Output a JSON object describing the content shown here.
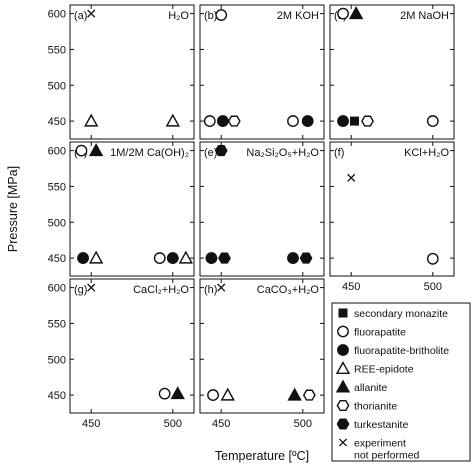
{
  "chart_data": {
    "type": "scatter",
    "xlabel": "Temperature [ºC]",
    "ylabel": "Pressure [MPa]",
    "xlim": [
      437,
      513
    ],
    "ylim": [
      425,
      612
    ],
    "xticks": [
      450,
      500
    ],
    "yticks": [
      450,
      500,
      550,
      600
    ],
    "panels": [
      {
        "id": "a",
        "tag": "(a)",
        "title": "H₂O",
        "points": [
          {
            "x": 450,
            "y": 600,
            "marker": "x"
          },
          {
            "x": 450,
            "y": 450,
            "marker": "tri-open"
          },
          {
            "x": 500,
            "y": 450,
            "marker": "tri-open"
          }
        ]
      },
      {
        "id": "b",
        "tag": "(b)",
        "title": "2M KOH",
        "points": [
          {
            "x": 450,
            "y": 598,
            "marker": "circle-open"
          },
          {
            "x": 443,
            "y": 450,
            "marker": "circle-open"
          },
          {
            "x": 451,
            "y": 450,
            "marker": "circle-filled"
          },
          {
            "x": 458,
            "y": 450,
            "marker": "hex-open"
          },
          {
            "x": 494,
            "y": 450,
            "marker": "circle-open"
          },
          {
            "x": 503,
            "y": 450,
            "marker": "circle-filled"
          }
        ]
      },
      {
        "id": "c",
        "tag": "(c)",
        "title": "2M NaOH",
        "points": [
          {
            "x": 445,
            "y": 600,
            "marker": "circle-open"
          },
          {
            "x": 453,
            "y": 600,
            "marker": "tri-filled"
          },
          {
            "x": 445,
            "y": 450,
            "marker": "circle-filled"
          },
          {
            "x": 452,
            "y": 450,
            "marker": "square-filled"
          },
          {
            "x": 460,
            "y": 450,
            "marker": "hex-open"
          },
          {
            "x": 500,
            "y": 450,
            "marker": "circle-open"
          }
        ]
      },
      {
        "id": "d",
        "tag": "(d)",
        "title": "1M/2M Ca(OH)₂",
        "points": [
          {
            "x": 444,
            "y": 600,
            "marker": "circle-open"
          },
          {
            "x": 453,
            "y": 600,
            "marker": "tri-filled"
          },
          {
            "x": 445,
            "y": 450,
            "marker": "circle-filled"
          },
          {
            "x": 453,
            "y": 450,
            "marker": "tri-open"
          },
          {
            "x": 492,
            "y": 450,
            "marker": "circle-open"
          },
          {
            "x": 500,
            "y": 450,
            "marker": "circle-filled"
          },
          {
            "x": 508,
            "y": 450,
            "marker": "tri-open"
          }
        ]
      },
      {
        "id": "e",
        "tag": "(e)",
        "title": "Na₂Si₂O₅+H₂O",
        "points": [
          {
            "x": 450,
            "y": 600,
            "marker": "hex-filled"
          },
          {
            "x": 444,
            "y": 450,
            "marker": "circle-filled"
          },
          {
            "x": 452,
            "y": 450,
            "marker": "hex-filled"
          },
          {
            "x": 494,
            "y": 450,
            "marker": "circle-filled"
          },
          {
            "x": 502,
            "y": 450,
            "marker": "hex-filled"
          }
        ]
      },
      {
        "id": "f",
        "tag": "(f)",
        "title": "KCl+H₂O",
        "points": [
          {
            "x": 450,
            "y": 562,
            "marker": "x"
          },
          {
            "x": 500,
            "y": 449,
            "marker": "circle-open"
          }
        ]
      },
      {
        "id": "g",
        "tag": "(g)",
        "title": "CaCl₂+H₂O",
        "points": [
          {
            "x": 450,
            "y": 600,
            "marker": "x"
          },
          {
            "x": 495,
            "y": 452,
            "marker": "circle-open"
          },
          {
            "x": 503,
            "y": 452,
            "marker": "tri-filled"
          }
        ]
      },
      {
        "id": "h",
        "tag": "(h)",
        "title": "CaCO₃+H₂O",
        "points": [
          {
            "x": 450,
            "y": 600,
            "marker": "x"
          },
          {
            "x": 445,
            "y": 450,
            "marker": "circle-open"
          },
          {
            "x": 454,
            "y": 450,
            "marker": "tri-open"
          },
          {
            "x": 495,
            "y": 450,
            "marker": "tri-filled"
          },
          {
            "x": 504,
            "y": 450,
            "marker": "hex-open"
          }
        ]
      }
    ],
    "legend": [
      {
        "marker": "square-filled",
        "label": "secondary monazite"
      },
      {
        "marker": "circle-open",
        "label": "fluorapatite"
      },
      {
        "marker": "circle-filled",
        "label": "fluorapatite-britholite"
      },
      {
        "marker": "tri-open",
        "label": "REE-epidote"
      },
      {
        "marker": "tri-filled",
        "label": "allanite"
      },
      {
        "marker": "hex-open",
        "label": "thorianite"
      },
      {
        "marker": "hex-filled",
        "label": "turkestanite"
      },
      {
        "marker": "x",
        "label": "experiment",
        "label2": "not performed"
      }
    ]
  }
}
